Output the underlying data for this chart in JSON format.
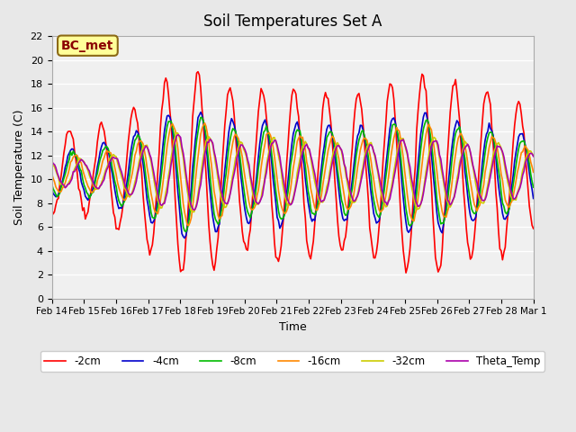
{
  "title": "Soil Temperatures Set A",
  "xlabel": "Time",
  "ylabel": "Soil Temperature (C)",
  "ylim": [
    0,
    22
  ],
  "yticks": [
    0,
    2,
    4,
    6,
    8,
    10,
    12,
    14,
    16,
    18,
    20,
    22
  ],
  "bg_color": "#e8e8e8",
  "plot_bg_color": "#f0f0f0",
  "annotation_text": "BC_met",
  "annotation_bg": "#ffff99",
  "annotation_border": "#8B6914",
  "series_names": [
    "-2cm",
    "-4cm",
    "-8cm",
    "-16cm",
    "-32cm",
    "Theta_Temp"
  ],
  "series_colors": [
    "#ff0000",
    "#0000cc",
    "#00bb00",
    "#ff8800",
    "#cccc00",
    "#aa00aa"
  ],
  "xtick_labels": [
    "Feb 14",
    "Feb 15",
    "Feb 16",
    "Feb 17",
    "Feb 18",
    "Feb 19",
    "Feb 20",
    "Feb 21",
    "Feb 22",
    "Feb 23",
    "Feb 24",
    "Feb 25",
    "Feb 26",
    "Feb 27",
    "Feb 28",
    "Mar 1"
  ],
  "n_days": 15,
  "pts_per_day": 24,
  "base": 10.5,
  "amp_2cm_seq": [
    3.5,
    3.5,
    4.5,
    6.5,
    8.5,
    8.0,
    6.5,
    7.5,
    7.0,
    6.5,
    7.0,
    8.0,
    8.5,
    7.0,
    7.0,
    5.0
  ],
  "amp_4cm_seq": [
    2.0,
    2.0,
    2.8,
    4.0,
    5.5,
    5.0,
    4.0,
    4.5,
    4.0,
    4.0,
    4.0,
    5.0,
    5.0,
    4.0,
    4.0,
    3.0
  ],
  "amp_8cm_seq": [
    1.8,
    1.8,
    2.5,
    3.5,
    5.0,
    4.5,
    3.5,
    4.0,
    3.5,
    3.5,
    3.5,
    4.5,
    4.5,
    3.5,
    3.5,
    2.5
  ],
  "amp_16cm_seq": [
    1.5,
    1.5,
    2.0,
    3.0,
    4.5,
    4.0,
    3.0,
    3.5,
    3.0,
    3.0,
    3.0,
    4.0,
    4.0,
    3.0,
    3.0,
    2.0
  ],
  "amp_32cm_seq": [
    1.2,
    1.2,
    1.5,
    2.5,
    3.5,
    3.0,
    2.5,
    3.0,
    2.5,
    2.5,
    2.5,
    3.0,
    3.0,
    2.5,
    2.5,
    1.8
  ],
  "amp_theta_seq": [
    1.1,
    1.1,
    1.4,
    2.3,
    3.3,
    2.8,
    2.3,
    2.8,
    2.3,
    2.3,
    2.3,
    2.8,
    2.8,
    2.3,
    2.3,
    1.7
  ],
  "lags": [
    0.0,
    0.08,
    0.12,
    0.2,
    0.35,
    0.38
  ],
  "noise_stds": [
    0.2,
    0.1,
    0.1,
    0.08,
    0.08,
    0.08
  ]
}
